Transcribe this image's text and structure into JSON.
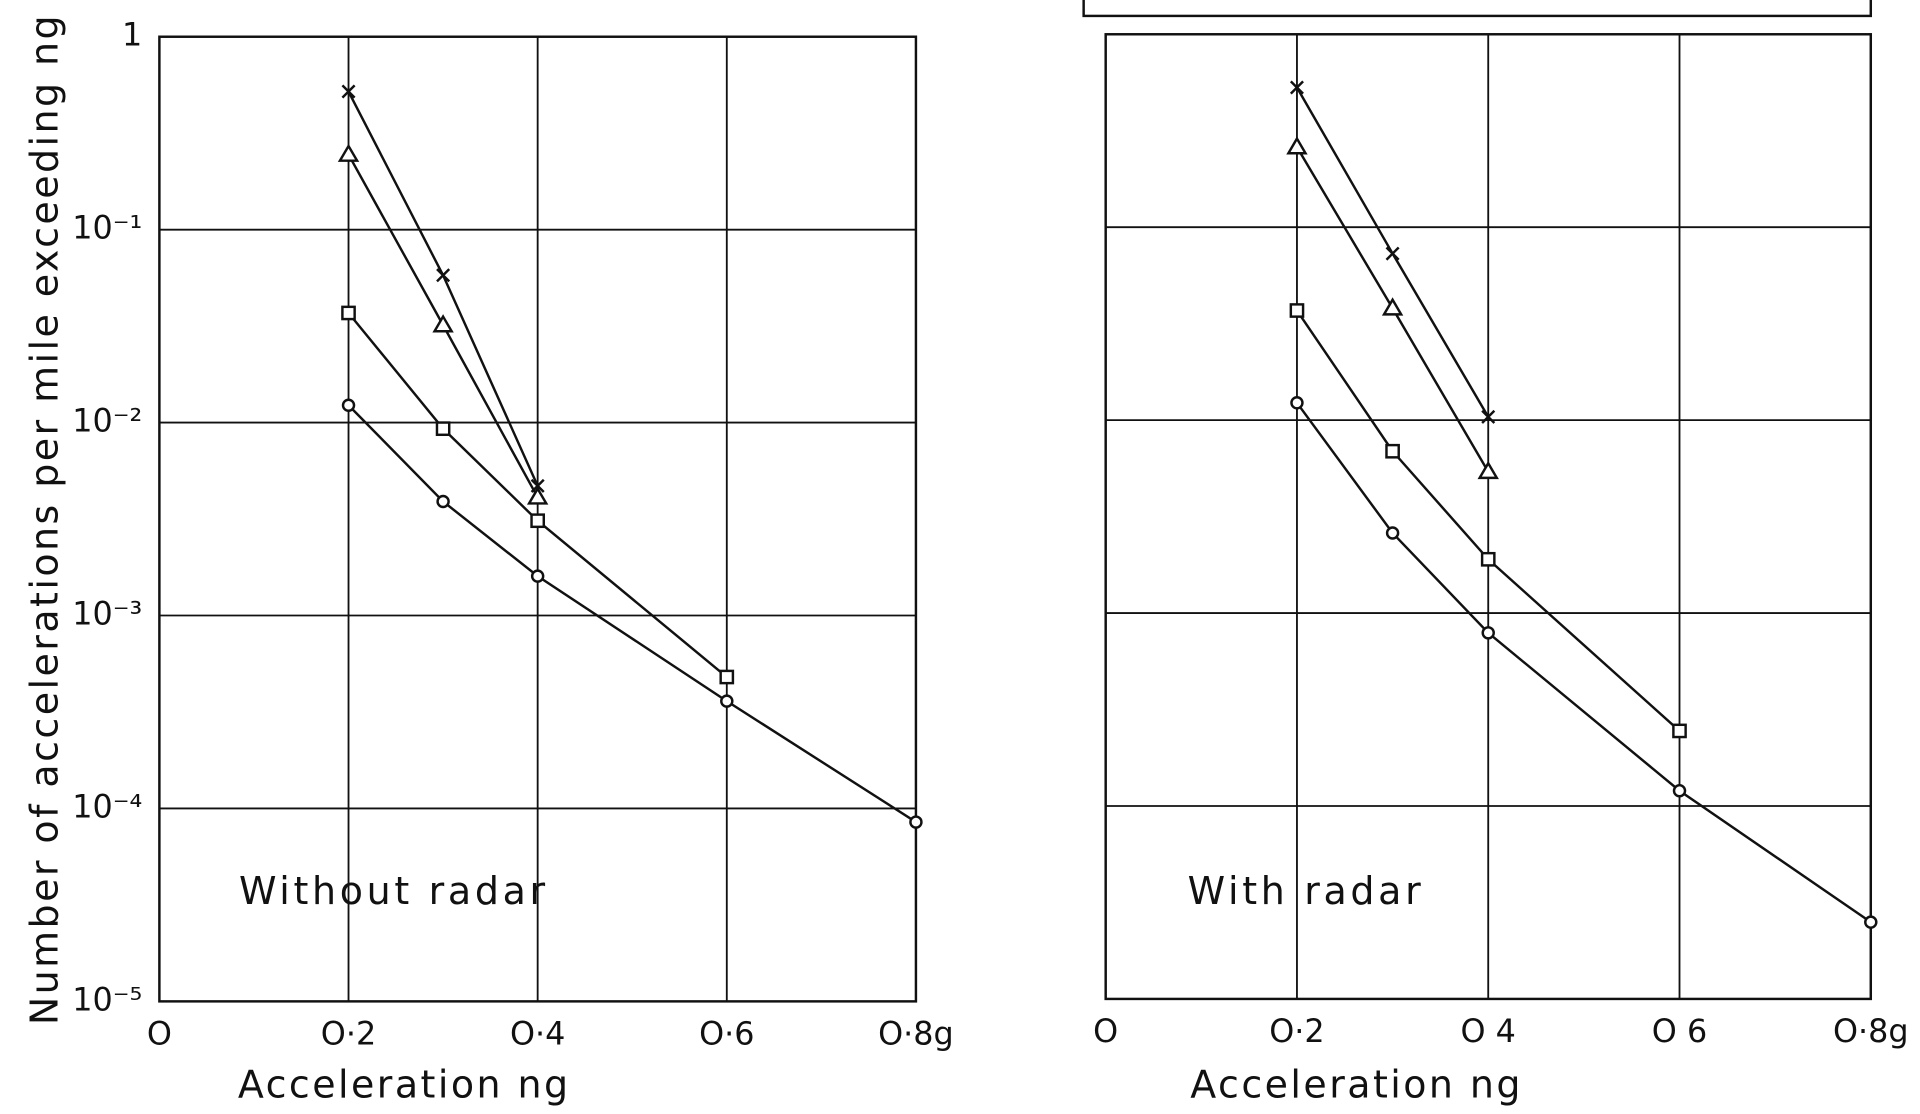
{
  "chart_data": [
    {
      "type": "line",
      "log_y": true,
      "grid": true,
      "y_label": "Number of accelerations per mile exceeding ng",
      "x_label": "Acceleration ng",
      "annotation": "Without radar",
      "xlim": [
        0,
        0.8
      ],
      "ylim": [
        1e-05,
        1
      ],
      "xticks": [
        {
          "value": 0,
          "label": "O"
        },
        {
          "value": 0.2,
          "label": "O·2"
        },
        {
          "value": 0.4,
          "label": "O·4"
        },
        {
          "value": 0.6,
          "label": "O·6"
        },
        {
          "value": 0.8,
          "label": "O·8g"
        }
      ],
      "yticks": [
        {
          "value": 1e-05,
          "label": "10⁻⁵"
        },
        {
          "value": 0.0001,
          "label": "10⁻⁴"
        },
        {
          "value": 0.001,
          "label": "10⁻³"
        },
        {
          "value": 0.01,
          "label": "10⁻²"
        },
        {
          "value": 0.1,
          "label": "10⁻¹"
        },
        1
      ],
      "series": [
        {
          "marker": "x",
          "color": "#111111",
          "x": [
            0.2,
            0.3,
            0.4
          ],
          "values": [
            0.52,
            0.058,
            0.0047
          ]
        },
        {
          "marker": "triangle",
          "color": "#111111",
          "x": [
            0.2,
            0.3,
            0.4
          ],
          "values": [
            0.245,
            0.032,
            0.0041
          ]
        },
        {
          "marker": "square",
          "color": "#111111",
          "x": [
            0.2,
            0.3,
            0.4,
            0.6
          ],
          "values": [
            0.037,
            0.0093,
            0.0031,
            0.00048
          ]
        },
        {
          "marker": "circle",
          "color": "#111111",
          "x": [
            0.2,
            0.3,
            0.4,
            0.6,
            0.8
          ],
          "values": [
            0.0123,
            0.0039,
            0.0016,
            0.00036,
            8.5e-05
          ]
        }
      ]
    },
    {
      "type": "line",
      "log_y": true,
      "grid": true,
      "show_ytick_labels": false,
      "x_label": "Acceleration ng",
      "annotation": "With radar",
      "xlim": [
        0,
        0.8
      ],
      "ylim": [
        1e-05,
        1
      ],
      "xticks": [
        {
          "value": 0,
          "label": "O"
        },
        {
          "value": 0.2,
          "label": "O·2"
        },
        {
          "value": 0.4,
          "label": "O 4"
        },
        {
          "value": 0.6,
          "label": "O 6"
        },
        {
          "value": 0.8,
          "label": "O·8g"
        }
      ],
      "yticks": [
        1e-05,
        0.0001,
        0.001,
        0.01,
        0.1,
        1
      ],
      "series": [
        {
          "marker": "x",
          "color": "#111111",
          "x": [
            0.2,
            0.3,
            0.4
          ],
          "values": [
            0.53,
            0.073,
            0.0104
          ]
        },
        {
          "marker": "triangle",
          "color": "#111111",
          "x": [
            0.2,
            0.3,
            0.4
          ],
          "values": [
            0.26,
            0.038,
            0.0054
          ]
        },
        {
          "marker": "square",
          "color": "#111111",
          "x": [
            0.2,
            0.3,
            0.4,
            0.6
          ],
          "values": [
            0.037,
            0.0069,
            0.0019,
            0.000245
          ]
        },
        {
          "marker": "circle",
          "color": "#111111",
          "x": [
            0.2,
            0.3,
            0.4,
            0.6,
            0.8
          ],
          "values": [
            0.0123,
            0.0026,
            0.00079,
            0.00012,
            2.5e-05
          ]
        }
      ]
    }
  ]
}
